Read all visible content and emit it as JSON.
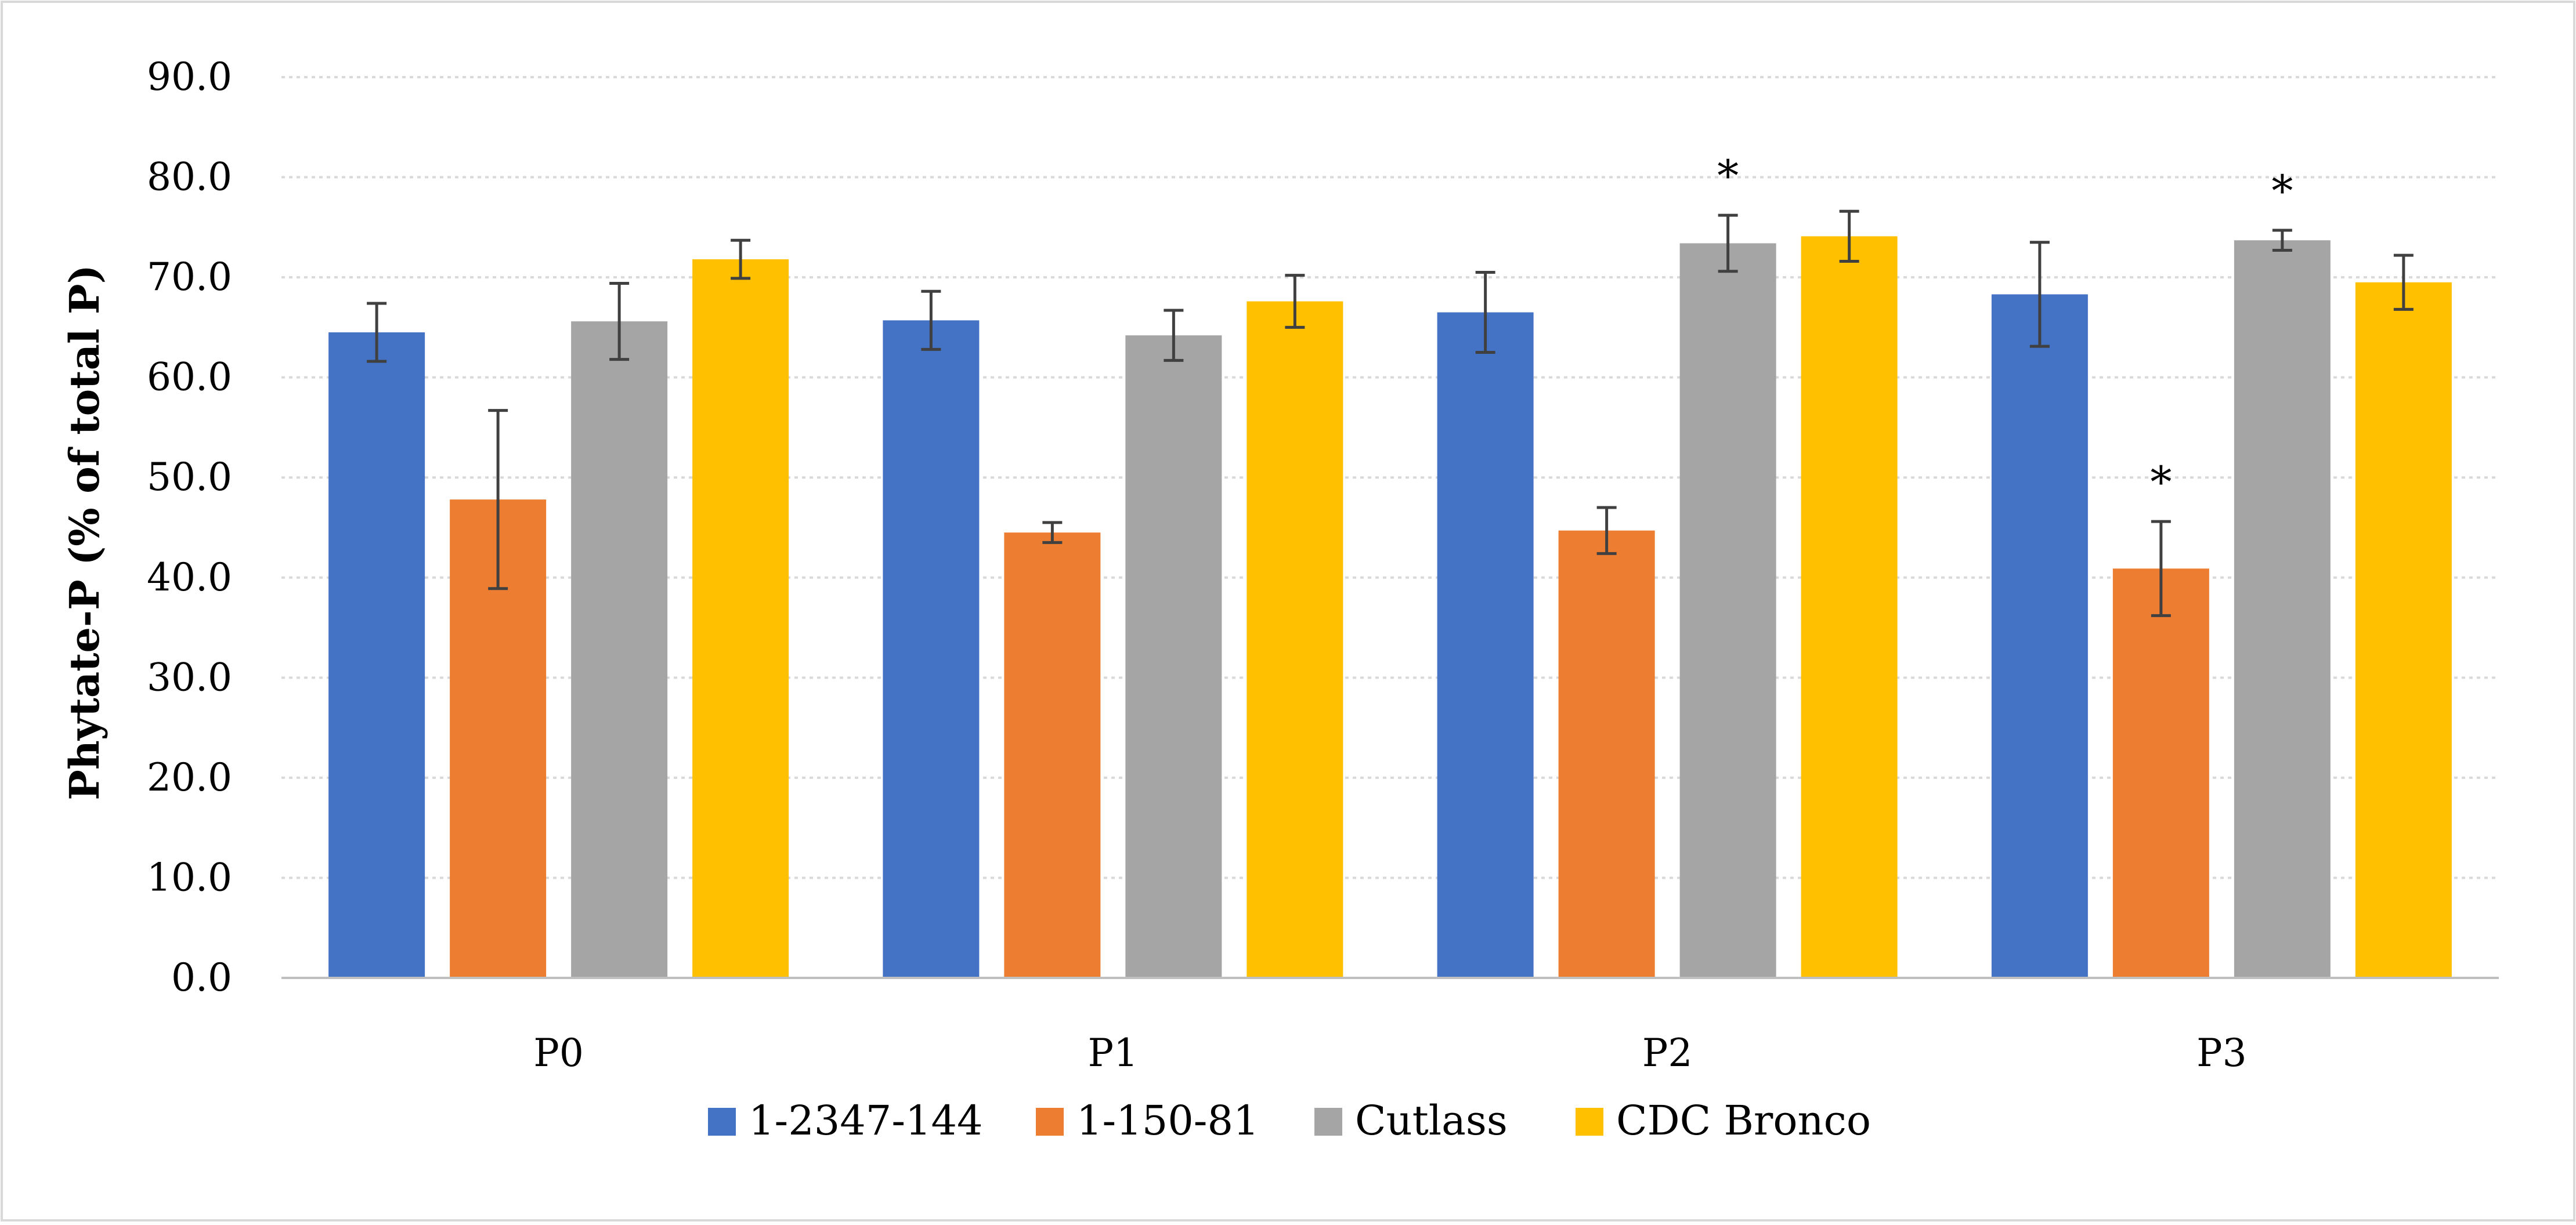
{
  "chart_data": {
    "type": "bar",
    "title": "",
    "xlabel": "",
    "ylabel": "Phytate-P (% of total P)",
    "ylim": [
      0,
      90
    ],
    "yticks": [
      "0.0",
      "10.0",
      "20.0",
      "30.0",
      "40.0",
      "50.0",
      "60.0",
      "70.0",
      "80.0",
      "90.0"
    ],
    "grid": true,
    "legend_position": "bottom",
    "categories": [
      "P0",
      "P1",
      "P2",
      "P3"
    ],
    "series": [
      {
        "name": "1-2347-144",
        "color": "#4472C4",
        "values": [
          64.5,
          65.7,
          66.5,
          68.3
        ],
        "errors": [
          2.9,
          2.9,
          4.0,
          5.2
        ],
        "significant": [
          false,
          false,
          false,
          false
        ]
      },
      {
        "name": "1-150-81",
        "color": "#ED7D31",
        "values": [
          47.8,
          44.5,
          44.7,
          40.9
        ],
        "errors": [
          8.9,
          1.0,
          2.3,
          4.7
        ],
        "significant": [
          false,
          false,
          false,
          true
        ]
      },
      {
        "name": "Cutlass",
        "color": "#A5A5A5",
        "values": [
          65.6,
          64.2,
          73.4,
          73.7
        ],
        "errors": [
          3.8,
          2.5,
          2.8,
          1.0
        ],
        "significant": [
          false,
          false,
          true,
          true
        ]
      },
      {
        "name": "CDC Bronco",
        "color": "#FFC000",
        "values": [
          71.8,
          67.6,
          74.1,
          69.5
        ],
        "errors": [
          1.9,
          2.6,
          2.5,
          2.7
        ],
        "significant": [
          false,
          false,
          false,
          false
        ]
      }
    ],
    "annotation_symbol": "*"
  }
}
